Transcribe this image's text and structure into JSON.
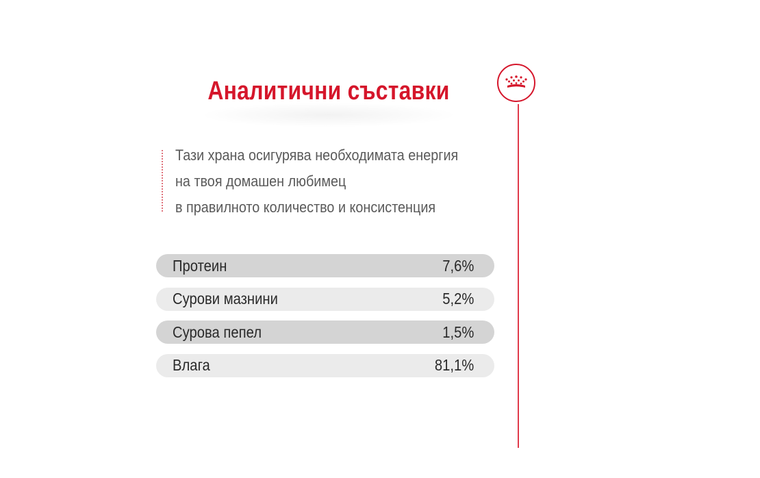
{
  "brand": {
    "icon": "crown-icon",
    "accent_color": "#d5162b"
  },
  "section": {
    "title": "Аналитични съставки",
    "description_lines": [
      "Тази храна осигурява необходимата енергия",
      "на твоя домашен любимец",
      "в правилното количество и консистенция"
    ]
  },
  "analytics": [
    {
      "label": "Протеин",
      "value": "7,6%"
    },
    {
      "label": "Сурови мазнини",
      "value": "5,2%"
    },
    {
      "label": "Сурова пепел",
      "value": "1,5%"
    },
    {
      "label": "Влага",
      "value": "81,1%"
    }
  ]
}
